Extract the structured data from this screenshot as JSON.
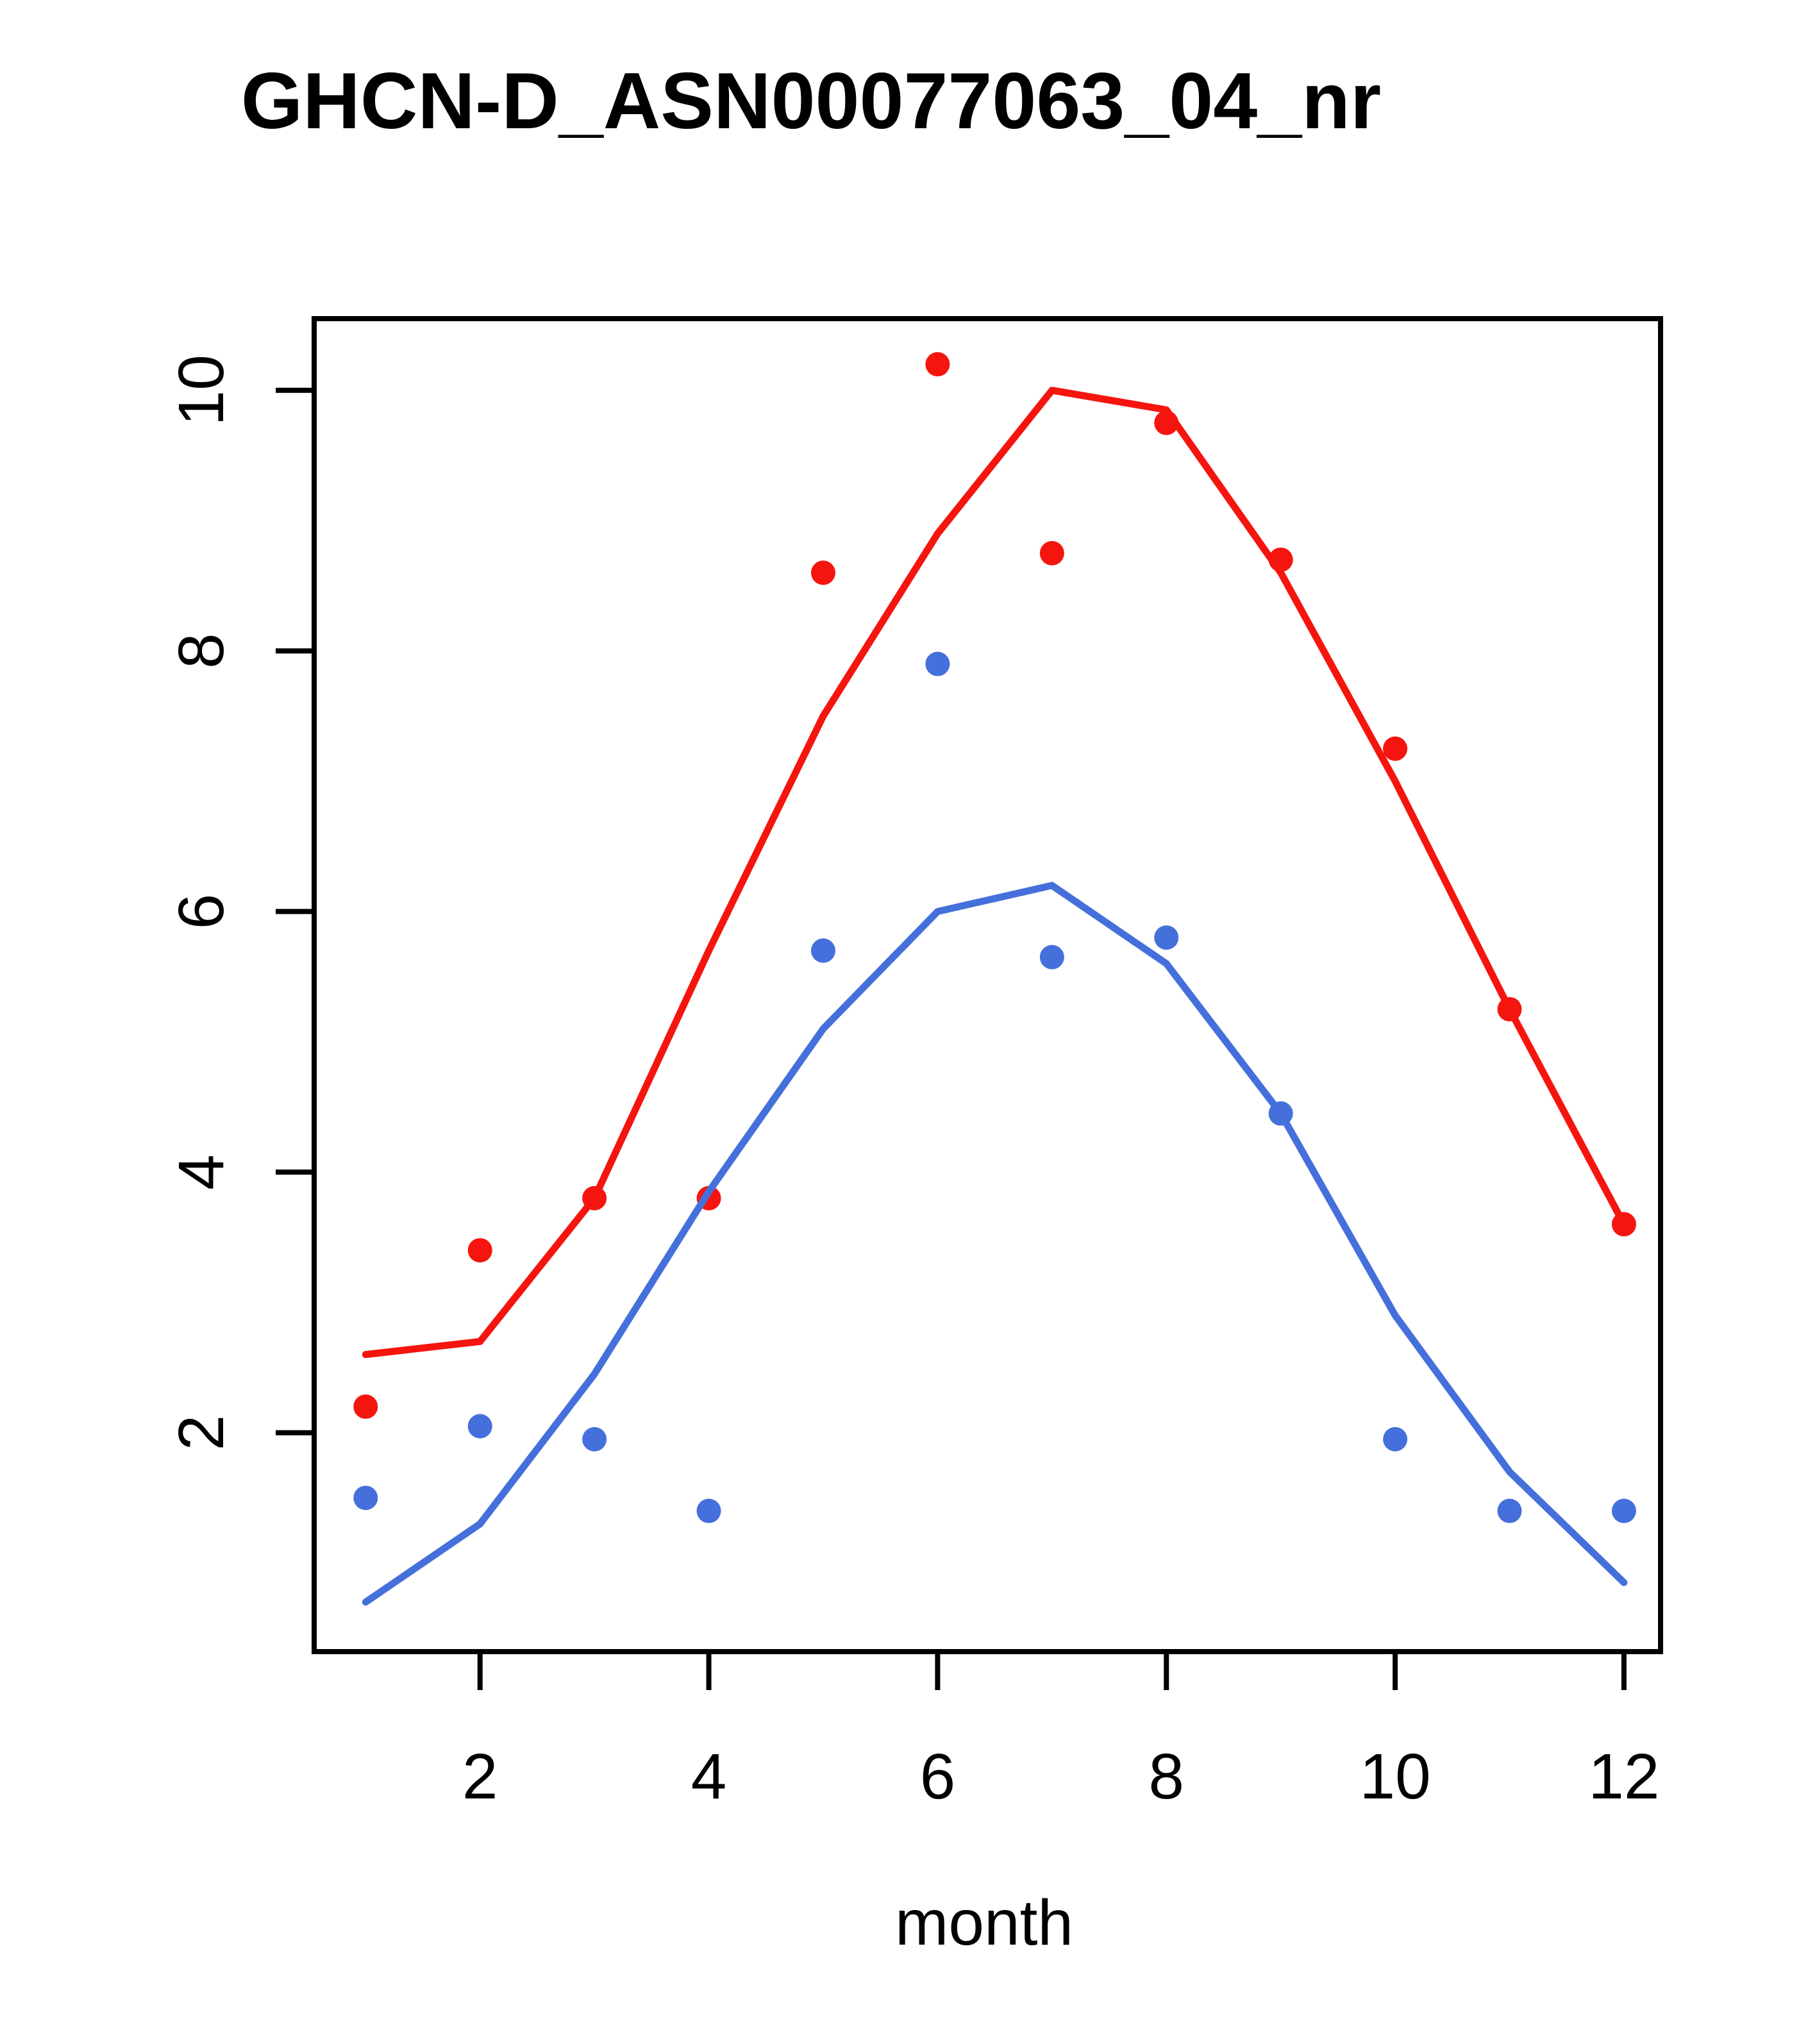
{
  "page": {
    "background": "#FFFFFF",
    "foreground": "#000000"
  },
  "chart_data": {
    "type": "scatter",
    "title": "GHCN-D_ASN00077063_04_nr",
    "xlabel": "month",
    "ylabel": "",
    "grid": false,
    "legend": "none",
    "x": [
      1,
      2,
      3,
      4,
      5,
      6,
      7,
      8,
      9,
      10,
      11,
      12
    ],
    "xticks": [
      2,
      4,
      6,
      8,
      10,
      12
    ],
    "yticks": [
      2,
      4,
      6,
      8,
      10
    ],
    "xlim": [
      0.55,
      12.32
    ],
    "ylim": [
      0.32,
      10.55
    ],
    "series": [
      {
        "name": "red-points",
        "kind": "points",
        "color": "#F5150F",
        "values": [
          2.2,
          3.4,
          3.8,
          3.8,
          8.6,
          10.2,
          8.75,
          9.75,
          8.7,
          7.25,
          5.25,
          3.6
        ]
      },
      {
        "name": "blue-points",
        "kind": "points",
        "color": "#4570DB",
        "values": [
          1.5,
          2.05,
          1.95,
          1.4,
          5.7,
          7.9,
          5.65,
          5.8,
          4.45,
          1.95,
          1.4,
          1.4
        ]
      },
      {
        "name": "red-line",
        "kind": "line",
        "color": "#F5150F",
        "values": [
          2.6,
          2.7,
          3.8,
          5.7,
          7.5,
          8.9,
          10.0,
          9.85,
          8.6,
          7.0,
          5.25,
          3.6
        ]
      },
      {
        "name": "blue-line",
        "kind": "line",
        "color": "#4570DB",
        "values": [
          0.7,
          1.3,
          2.45,
          3.85,
          5.1,
          6.0,
          6.2,
          5.6,
          4.45,
          2.9,
          1.7,
          0.85
        ]
      }
    ]
  }
}
